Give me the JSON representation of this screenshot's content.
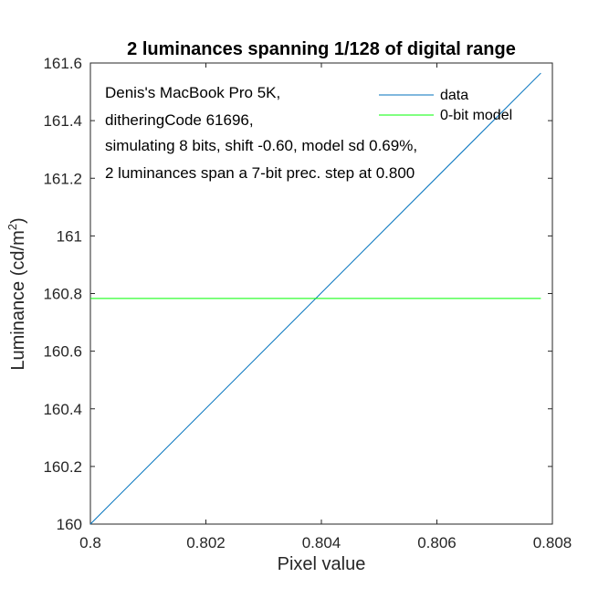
{
  "chart_data": {
    "type": "line",
    "title": "2 luminances spanning 1/128 of digital range",
    "xlabel": "Pixel value",
    "ylabel": "Luminance (cd/m",
    "ylabel_superscript": "2",
    "ylabel_suffix": ")",
    "xlim": [
      0.8,
      0.808
    ],
    "ylim": [
      160,
      161.6
    ],
    "xticks": [
      0.8,
      0.802,
      0.804,
      0.806,
      0.808
    ],
    "xtick_labels": [
      "0.8",
      "0.802",
      "0.804",
      "0.806",
      "0.808"
    ],
    "yticks": [
      160,
      160.2,
      160.4,
      160.6,
      160.8,
      161,
      161.2,
      161.4,
      161.6
    ],
    "ytick_labels": [
      "160",
      "160.2",
      "160.4",
      "160.6",
      "160.8",
      "161",
      "161.2",
      "161.4",
      "161.6"
    ],
    "grid": false,
    "legend_position": "top-right",
    "annotation_lines": [
      "Denis's MacBook Pro 5K,",
      "ditheringCode 61696,",
      "simulating 8 bits, shift -0.60, model sd 0.69%,",
      "2 luminances span a 7-bit prec. step at 0.800"
    ],
    "series": [
      {
        "name": "data",
        "color": "#0072bd",
        "x": [
          0.8,
          0.8078
        ],
        "y": [
          160,
          161.565
        ]
      },
      {
        "name": "0-bit model",
        "color": "#00ff00",
        "x": [
          0.8,
          0.8078
        ],
        "y": [
          160.783,
          160.783
        ]
      }
    ]
  }
}
